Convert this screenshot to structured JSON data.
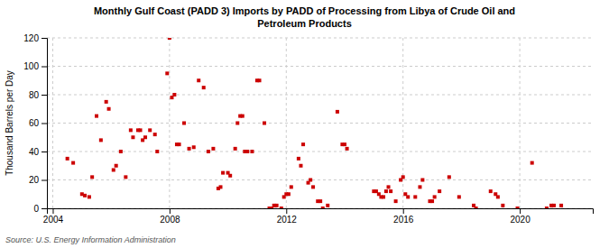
{
  "chart_data": {
    "type": "scatter",
    "title": "Monthly Gulf Coast (PADD 3) Imports by PADD of Processing from Libya of Crude Oil and\nPetroleum Products",
    "ylabel": "Thousand Barrels per Day",
    "source": "Source: U.S. Energy Information Administration",
    "color": "#cc0000",
    "marker": "square",
    "grid": true,
    "xlim": [
      2003.8,
      2022.5
    ],
    "ylim": [
      0,
      120
    ],
    "xticks": [
      2004,
      2008,
      2012,
      2016,
      2020
    ],
    "yticks": [
      0,
      20,
      40,
      60,
      80,
      100,
      120
    ],
    "x": [
      2004.5,
      2004.7,
      2005.0,
      2005.1,
      2005.25,
      2005.35,
      2005.5,
      2005.65,
      2005.83,
      2005.92,
      2006.08,
      2006.17,
      2006.33,
      2006.5,
      2006.67,
      2006.75,
      2006.92,
      2007.0,
      2007.08,
      2007.17,
      2007.33,
      2007.5,
      2007.58,
      2007.92,
      2008.0,
      2008.08,
      2008.17,
      2008.25,
      2008.33,
      2008.5,
      2008.67,
      2008.83,
      2009.0,
      2009.17,
      2009.33,
      2009.5,
      2009.67,
      2009.75,
      2009.83,
      2010.0,
      2010.08,
      2010.25,
      2010.33,
      2010.42,
      2010.5,
      2010.58,
      2010.67,
      2010.83,
      2011.0,
      2011.08,
      2011.25,
      2011.42,
      2011.5,
      2011.58,
      2011.67,
      2011.83,
      2011.92,
      2012.0,
      2012.08,
      2012.17,
      2012.42,
      2012.5,
      2012.58,
      2012.75,
      2012.83,
      2012.92,
      2013.08,
      2013.17,
      2013.25,
      2013.42,
      2013.75,
      2013.92,
      2014.0,
      2014.08,
      2015.0,
      2015.08,
      2015.17,
      2015.25,
      2015.33,
      2015.42,
      2015.5,
      2015.58,
      2015.75,
      2015.92,
      2016.0,
      2016.08,
      2016.17,
      2016.42,
      2016.58,
      2016.67,
      2016.92,
      2017.0,
      2017.08,
      2017.25,
      2017.58,
      2017.92,
      2018.42,
      2018.5,
      2019.0,
      2019.17,
      2019.25,
      2019.42,
      2019.92,
      2020.42,
      2020.92,
      2021.08,
      2021.17,
      2021.42
    ],
    "values": [
      35,
      32,
      10,
      9,
      8,
      22,
      65,
      48,
      75,
      70,
      27,
      30,
      40,
      22,
      55,
      50,
      55,
      55,
      48,
      50,
      55,
      52,
      40,
      95,
      120,
      78,
      80,
      45,
      45,
      60,
      42,
      43,
      90,
      85,
      40,
      42,
      14,
      15,
      25,
      25,
      23,
      42,
      60,
      65,
      65,
      40,
      40,
      40,
      90,
      90,
      60,
      0,
      0,
      2,
      2,
      0,
      8,
      10,
      10,
      15,
      35,
      30,
      45,
      18,
      20,
      15,
      5,
      5,
      0,
      2,
      68,
      45,
      45,
      42,
      12,
      12,
      10,
      8,
      8,
      12,
      15,
      12,
      5,
      20,
      22,
      10,
      8,
      8,
      15,
      20,
      5,
      5,
      8,
      12,
      22,
      8,
      2,
      0,
      12,
      10,
      8,
      2,
      0,
      32,
      0,
      2,
      2,
      2
    ]
  }
}
